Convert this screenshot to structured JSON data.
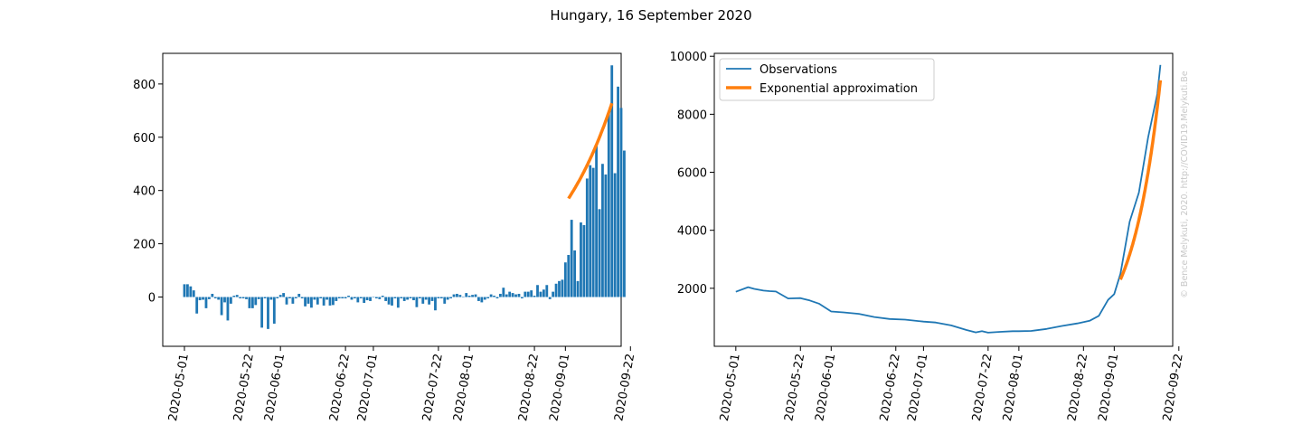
{
  "figure_title": "Hungary, 16 September 2020",
  "watermark": "© Bence Melykuti, 2020. http://COVID19.Melykuti.Be",
  "colors": {
    "observations": "#1f77b4",
    "approximation": "#ff7f0e",
    "watermark": "#c8c8c8"
  },
  "chart_data": [
    {
      "type": "bar",
      "title": "",
      "xlabel": "",
      "ylabel": "",
      "xlim": [
        "2020-04-24",
        "2020-09-19"
      ],
      "ylim": [
        -185,
        915
      ],
      "x_ticks": [
        "2020-05-01",
        "2020-05-22",
        "2020-06-01",
        "2020-06-22",
        "2020-07-01",
        "2020-07-22",
        "2020-08-01",
        "2020-08-22",
        "2020-09-01",
        "2020-09-22"
      ],
      "y_ticks": [
        0,
        200,
        400,
        600,
        800
      ],
      "grid": false,
      "start_date": "2020-05-01",
      "bar_values": [
        48,
        48,
        40,
        25,
        -62,
        -12,
        -10,
        -42,
        -8,
        12,
        -5,
        -10,
        -68,
        -20,
        -88,
        -25,
        5,
        8,
        -5,
        -5,
        -8,
        -42,
        -42,
        -30,
        -8,
        -115,
        -5,
        -120,
        -10,
        -100,
        -5,
        8,
        15,
        -28,
        -5,
        -25,
        -5,
        12,
        -5,
        -35,
        -25,
        -40,
        -10,
        -28,
        -5,
        -32,
        -10,
        -32,
        -30,
        -15,
        -5,
        -5,
        -5,
        5,
        -10,
        -5,
        -20,
        -5,
        -22,
        -12,
        -15,
        0,
        -5,
        -8,
        5,
        -15,
        -28,
        -32,
        -5,
        -40,
        -5,
        -15,
        -10,
        -5,
        -12,
        -38,
        -5,
        -25,
        -10,
        -28,
        -15,
        -50,
        -5,
        -5,
        -25,
        -10,
        -5,
        10,
        12,
        8,
        0,
        15,
        5,
        8,
        10,
        -15,
        -20,
        -10,
        -5,
        10,
        5,
        -5,
        12,
        35,
        10,
        20,
        15,
        10,
        12,
        -5,
        20,
        20,
        25,
        5,
        45,
        20,
        28,
        45,
        -8,
        20,
        50,
        60,
        65,
        130,
        158,
        290,
        175,
        60,
        280,
        270,
        445,
        495,
        485,
        570,
        330,
        500,
        460,
        695,
        870,
        465,
        790,
        710,
        550
      ],
      "approx_x": [
        "2020-09-02",
        "2020-09-16"
      ],
      "approx_y0": 370,
      "approx_growth": 0.0483
    },
    {
      "type": "line",
      "title": "",
      "xlabel": "",
      "ylabel": "",
      "xlim": [
        "2020-04-24",
        "2020-09-20"
      ],
      "ylim": [
        0,
        10100
      ],
      "x_ticks": [
        "2020-05-01",
        "2020-05-22",
        "2020-06-01",
        "2020-06-22",
        "2020-07-01",
        "2020-07-22",
        "2020-08-01",
        "2020-08-22",
        "2020-09-01",
        "2020-09-22"
      ],
      "y_ticks": [
        2000,
        4000,
        6000,
        8000,
        10000
      ],
      "grid": false,
      "legend_placement": "top-left",
      "series": [
        {
          "name": "Observations",
          "points": [
            [
              "2020-05-01",
              1880
            ],
            [
              "2020-05-05",
              2040
            ],
            [
              "2020-05-07",
              1980
            ],
            [
              "2020-05-10",
              1920
            ],
            [
              "2020-05-12",
              1900
            ],
            [
              "2020-05-14",
              1890
            ],
            [
              "2020-05-18",
              1650
            ],
            [
              "2020-05-22",
              1660
            ],
            [
              "2020-05-25",
              1580
            ],
            [
              "2020-05-28",
              1470
            ],
            [
              "2020-06-01",
              1200
            ],
            [
              "2020-06-05",
              1170
            ],
            [
              "2020-06-10",
              1120
            ],
            [
              "2020-06-15",
              1010
            ],
            [
              "2020-06-20",
              940
            ],
            [
              "2020-06-25",
              920
            ],
            [
              "2020-07-01",
              850
            ],
            [
              "2020-07-05",
              820
            ],
            [
              "2020-07-10",
              720
            ],
            [
              "2020-07-15",
              560
            ],
            [
              "2020-07-18",
              480
            ],
            [
              "2020-07-20",
              520
            ],
            [
              "2020-07-22",
              470
            ],
            [
              "2020-07-26",
              500
            ],
            [
              "2020-07-30",
              520
            ],
            [
              "2020-08-01",
              520
            ],
            [
              "2020-08-05",
              530
            ],
            [
              "2020-08-10",
              600
            ],
            [
              "2020-08-15",
              700
            ],
            [
              "2020-08-20",
              790
            ],
            [
              "2020-08-24",
              880
            ],
            [
              "2020-08-27",
              1050
            ],
            [
              "2020-08-30",
              1600
            ],
            [
              "2020-09-01",
              1800
            ],
            [
              "2020-09-03",
              2500
            ],
            [
              "2020-09-06",
              4300
            ],
            [
              "2020-09-09",
              5300
            ],
            [
              "2020-09-12",
              7200
            ],
            [
              "2020-09-15",
              8700
            ],
            [
              "2020-09-16",
              9700
            ]
          ]
        },
        {
          "name": "Exponential approximation",
          "x_range": [
            "2020-09-03",
            "2020-09-16"
          ],
          "y_at_start": 2300,
          "growth": 0.1064
        }
      ]
    }
  ]
}
